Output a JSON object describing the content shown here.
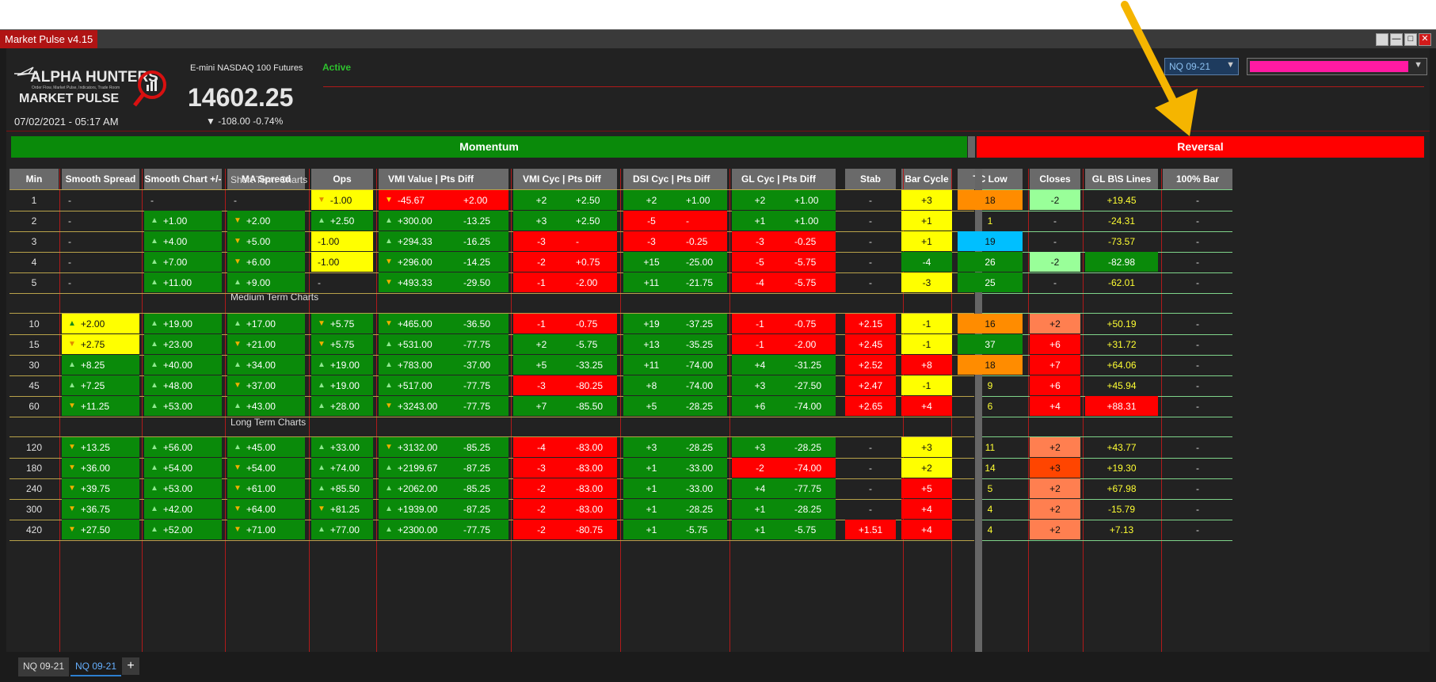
{
  "window": {
    "title": "Market Pulse v4.15"
  },
  "header": {
    "logo_top": "ALPHA HUNTERS",
    "logo_sub": "Order Flow, Market Pulse, Indicators, Trade Room",
    "logo_bottom": "MARKET PULSE",
    "datetime": "07/02/2021 - 05:17 AM",
    "instrument": "E-mini NASDAQ 100 Futures",
    "price": "14602.25",
    "change": "▼ -108.00 -0.74%",
    "status": "Active",
    "contract_select": "NQ 09-21"
  },
  "banners": {
    "momentum": "Momentum",
    "reversal": "Reversal"
  },
  "columns": [
    "Min",
    "Smooth Spread",
    "Smooth Chart +/-",
    "MA Spread",
    "Ops",
    "VMI Value | Pts Diff",
    "VMI Cyc | Pts Diff",
    "DSI Cyc | Pts Diff",
    "GL Cyc | Pts Diff",
    "Stab",
    "Bar Cycle",
    "TC Low",
    "Closes",
    "GL B\\S Lines",
    "100% Bar"
  ],
  "sections": [
    "Short Term Charts",
    "Medium Term Charts",
    "Long Term Charts"
  ],
  "colors": {
    "green": "#0a8a0a",
    "red": "#ff0000",
    "yellow": "#ffff00",
    "orange": "#ff8c00",
    "salmon": "#ff7f50",
    "blue": "#00bfff",
    "lightgreen": "#99ff99",
    "bright_orange": "#ff4500"
  },
  "rows": [
    [
      "1",
      "-",
      "-",
      "-",
      "-1.00",
      "-45.67",
      "+2.00",
      "+2",
      "+2.50",
      "+2",
      "+1.00",
      "+2",
      "+1.00",
      "-",
      "+3",
      "18",
      "-2",
      "+19.45",
      "-"
    ],
    [
      "2",
      "-",
      "+1.00",
      "+2.00",
      "+2.50",
      "+300.00",
      "-13.25",
      "+3",
      "+2.50",
      "-5",
      "-",
      "+1",
      "+1.00",
      "-",
      "+1",
      "1",
      "-",
      "-24.31",
      "-"
    ],
    [
      "3",
      "-",
      "+4.00",
      "+5.00",
      "-1.00",
      "+294.33",
      "-16.25",
      "-3",
      "-",
      "-3",
      "-0.25",
      "-3",
      "-0.25",
      "-",
      "+1",
      "19",
      "-",
      "-73.57",
      "-"
    ],
    [
      "4",
      "-",
      "+7.00",
      "+6.00",
      "-1.00",
      "+296.00",
      "-14.25",
      "-2",
      "+0.75",
      "+15",
      "-25.00",
      "-5",
      "-5.75",
      "-",
      "-4",
      "26",
      "-2",
      "-82.98",
      "-"
    ],
    [
      "5",
      "-",
      "+11.00",
      "+9.00",
      "-",
      "+493.33",
      "-29.50",
      "-1",
      "-2.00",
      "+11",
      "-21.75",
      "-4",
      "-5.75",
      "-",
      "-3",
      "25",
      "-",
      "-62.01",
      "-"
    ],
    [
      "10",
      "+2.00",
      "+19.00",
      "+17.00",
      "+5.75",
      "+465.00",
      "-36.50",
      "-1",
      "-0.75",
      "+19",
      "-37.25",
      "-1",
      "-0.75",
      "+2.15",
      "-1",
      "16",
      "+2",
      "+50.19",
      "-"
    ],
    [
      "15",
      "+2.75",
      "+23.00",
      "+21.00",
      "+5.75",
      "+531.00",
      "-77.75",
      "+2",
      "-5.75",
      "+13",
      "-35.25",
      "-1",
      "-2.00",
      "+2.45",
      "-1",
      "37",
      "+6",
      "+31.72",
      "-"
    ],
    [
      "30",
      "+8.25",
      "+40.00",
      "+34.00",
      "+19.00",
      "+783.00",
      "-37.00",
      "+5",
      "-33.25",
      "+11",
      "-74.00",
      "+4",
      "-31.25",
      "+2.52",
      "+8",
      "18",
      "+7",
      "+64.06",
      "-"
    ],
    [
      "45",
      "+7.25",
      "+48.00",
      "+37.00",
      "+19.00",
      "+517.00",
      "-77.75",
      "-3",
      "-80.25",
      "+8",
      "-74.00",
      "+3",
      "-27.50",
      "+2.47",
      "-1",
      "9",
      "+6",
      "+45.94",
      "-"
    ],
    [
      "60",
      "+11.25",
      "+53.00",
      "+43.00",
      "+28.00",
      "+3243.00",
      "-77.75",
      "+7",
      "-85.50",
      "+5",
      "-28.25",
      "+6",
      "-74.00",
      "+2.65",
      "+4",
      "6",
      "+4",
      "+88.31",
      "-"
    ],
    [
      "120",
      "+13.25",
      "+56.00",
      "+45.00",
      "+33.00",
      "+3132.00",
      "-85.25",
      "-4",
      "-83.00",
      "+3",
      "-28.25",
      "+3",
      "-28.25",
      "-",
      "+3",
      "11",
      "+2",
      "+43.77",
      "-"
    ],
    [
      "180",
      "+36.00",
      "+54.00",
      "+54.00",
      "+74.00",
      "+2199.67",
      "-87.25",
      "-3",
      "-83.00",
      "+1",
      "-33.00",
      "-2",
      "-74.00",
      "-",
      "+2",
      "14",
      "+3",
      "+19.30",
      "-"
    ],
    [
      "240",
      "+39.75",
      "+53.00",
      "+61.00",
      "+85.50",
      "+2062.00",
      "-85.25",
      "-2",
      "-83.00",
      "+1",
      "-33.00",
      "+4",
      "-77.75",
      "-",
      "+5",
      "5",
      "+2",
      "+67.98",
      "-"
    ],
    [
      "300",
      "+36.75",
      "+42.00",
      "+64.00",
      "+81.25",
      "+1939.00",
      "-87.25",
      "-2",
      "-83.00",
      "+1",
      "-28.25",
      "+1",
      "-28.25",
      "-",
      "+4",
      "4",
      "+2",
      "-15.79",
      "-"
    ],
    [
      "420",
      "+27.50",
      "+52.00",
      "+71.00",
      "+77.00",
      "+2300.00",
      "-77.75",
      "-2",
      "-80.75",
      "+1",
      "-5.75",
      "+1",
      "-5.75",
      "+1.51",
      "+4",
      "4",
      "+2",
      "+7.13",
      "-"
    ]
  ],
  "tabs": [
    "NQ 09-21",
    "NQ 09-21"
  ],
  "tab_add": "+"
}
